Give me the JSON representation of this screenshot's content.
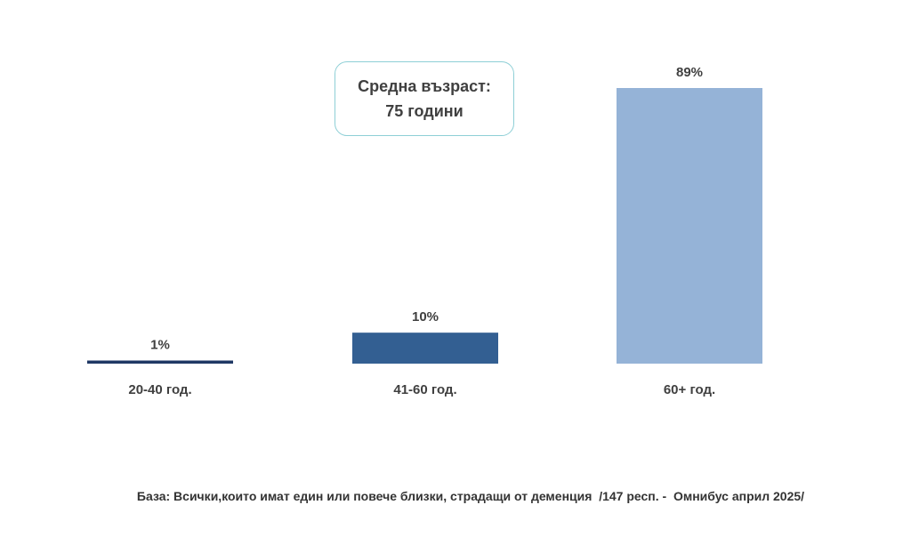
{
  "chart_data": {
    "type": "bar",
    "categories": [
      "20-40 год.",
      "41-60 год.",
      "60+ год."
    ],
    "values": [
      1,
      10,
      89
    ],
    "value_labels": [
      "1%",
      "10%",
      "89%"
    ],
    "bar_colors": [
      "#1f3864",
      "#335f92",
      "#95b3d7"
    ],
    "ylim": [
      0,
      89
    ],
    "grid": false,
    "legend": "none"
  },
  "callout": {
    "line1": "Средна възраст:",
    "line2": "75 години"
  },
  "footnote": "База: Всички,които имат един или повече близки, страдащи от деменция  /147 респ. -  Омнибус април 2025/"
}
